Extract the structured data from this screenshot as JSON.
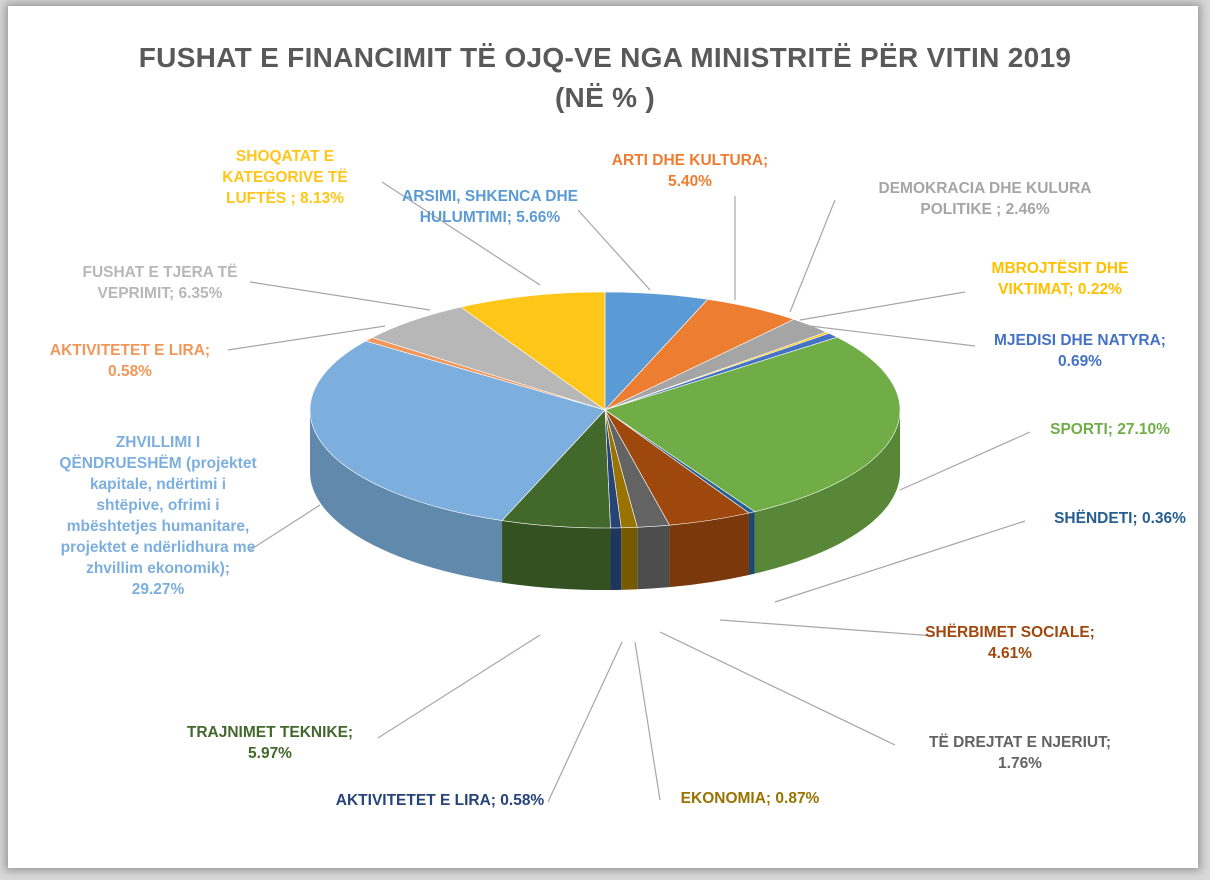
{
  "chart_data": {
    "type": "pie3d",
    "title": "FUSHAT E FINANCIMIT TË OJQ-VE NGA MINISTRITË PËR VITIN 2019",
    "subtitle": "(NË % )",
    "categories": [
      "ARSIMI, SHKENCA DHE HULUMTIMI;",
      "ARTI DHE KULTURA;",
      "DEMOKRACIA DHE KULURA POLITIKE ;",
      "MBROJTËSIT DHE VIKTIMAT;",
      "MJEDISI DHE NATYRA;",
      "SPORTI;",
      "SHËNDETI;",
      "SHËRBIMET SOCIALE;",
      "TË DREJTAT E NJERIUT;",
      "EKONOMIA;",
      "AKTIVITETET E LIRA;",
      "TRAJNIMET TEKNIKE;",
      "ZHVILLIMI I QËNDRUESHËM (projektet kapitale, ndërtimi i shtëpive, ofrimi i mbështetjes humanitare, projektet e ndërlidhura me zhvillim ekonomik);",
      "AKTIVITETET E LIRA;",
      "FUSHAT E TJERA TË VEPRIMIT;",
      "SHOQATAT E KATEGORIVE TË LUFTËS ;"
    ],
    "values": [
      5.66,
      5.4,
      2.46,
      0.22,
      0.69,
      27.1,
      0.36,
      4.61,
      1.76,
      0.87,
      0.58,
      5.97,
      29.27,
      0.58,
      6.35,
      8.13
    ],
    "value_labels": [
      "5.66%",
      "5.40%",
      "2.46%",
      "0.22%",
      "0.69%",
      "27.10%",
      "0.36%",
      "4.61%",
      "1.76%",
      "0.87%",
      "0.58%",
      "5.97%",
      "29.27%",
      "0.58%",
      "6.35%",
      "8.13%"
    ],
    "colors": [
      "#5b9bd5",
      "#ed7d31",
      "#a5a5a5",
      "#ffc000",
      "#4472c4",
      "#70ad47",
      "#255e91",
      "#9e480e",
      "#636363",
      "#997300",
      "#264478",
      "#43682b",
      "#7cafdd",
      "#f1975a",
      "#b7b7b7",
      "#ffc61a"
    ]
  }
}
